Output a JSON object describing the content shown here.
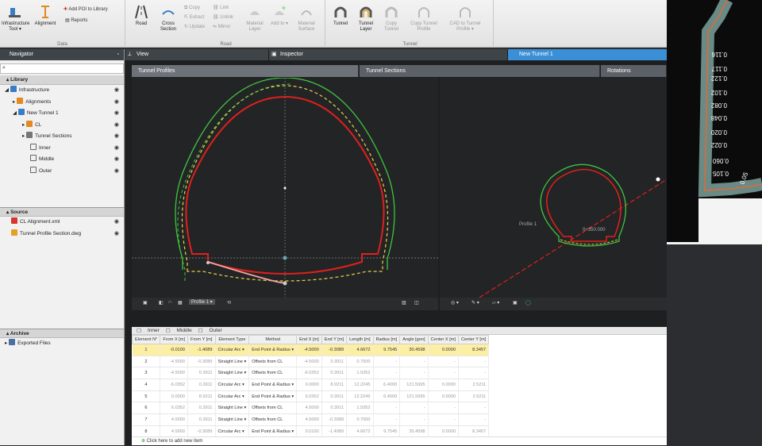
{
  "ribbon": {
    "groups": [
      {
        "label": "Data"
      },
      {
        "label": "Road"
      },
      {
        "label": "Tunnel"
      }
    ],
    "infra_tool": "Infrastructure Tool ▾",
    "alignment": "Alignment",
    "add_poi": "Add POI to Library",
    "reports": "Reports",
    "road": "Road",
    "cross_section": "Cross Section",
    "copy": "Copy",
    "link": "Link",
    "extract": "Extract",
    "unlink": "Unlink",
    "update": "Update",
    "mirror": "Mirror",
    "material_layer": "Material Layer",
    "add_to": "Add to ▾",
    "material_surface": "Material Surface",
    "tunnel": "Tunnel",
    "tunnel_layer": "Tunnel Layer",
    "copy_tunnel": "Copy Tunnel",
    "copy_tunnel_profile": "Copy Tunnel Profile",
    "cad_to_tunnel_profile": "CAD to Tunnel Profile ▾"
  },
  "navigator": {
    "title": "Navigator",
    "library_label": "Library",
    "tree": [
      {
        "label": "Infrastructure",
        "depth": 0
      },
      {
        "label": "Alignments",
        "depth": 1
      },
      {
        "label": "New Tunnel 1",
        "depth": 1
      },
      {
        "label": "CL",
        "depth": 2
      },
      {
        "label": "Tunnel Sections",
        "depth": 2
      },
      {
        "label": "Inner",
        "depth": 2
      },
      {
        "label": "Middle",
        "depth": 2
      },
      {
        "label": "Outer",
        "depth": 2
      }
    ],
    "source_label": "Source",
    "source": [
      {
        "label": "CL Alignment.xml"
      },
      {
        "label": "Tunnel Profile Section.dwg"
      }
    ],
    "archive_label": "Archive",
    "archive": [
      {
        "label": "Exported Files"
      }
    ]
  },
  "tabs": {
    "view": "View",
    "inspector": "Inspector",
    "doc": "New Tunnel 1"
  },
  "subtabs": {
    "profiles": "Tunnel Profiles",
    "sections": "Tunnel Sections",
    "rotations": "Rotations"
  },
  "views": {
    "profile_select": "Profile 1 ▾",
    "section_label": "Profile 1",
    "station": "0+350.000"
  },
  "grid": {
    "tabs": [
      "Inner",
      "Middle",
      "Outer"
    ],
    "columns": [
      "Element N°",
      "From X [m]",
      "From Y [m]",
      "Element Type",
      "Method",
      "End X [m]",
      "End Y [m]",
      "Length [m]",
      "Radius [m]",
      "Angle [gon]",
      "Center X [m]",
      "Center Y [m]"
    ],
    "rows": [
      [
        "1",
        "-0.0100",
        "-1.4089",
        "Circular Arc ▾",
        "End Point & Radius ▾",
        "-4.5000",
        "-0.3089",
        "4.6672",
        "9.7545",
        "30.4598",
        "0.0000",
        "8.3457"
      ],
      [
        "2",
        "-4.5000",
        "-0.3089",
        "Straight Line ▾",
        "Offsets from CL",
        "-4.5000",
        "0.3911",
        "0.7000",
        "-",
        "-",
        "-",
        "-"
      ],
      [
        "3",
        "-4.5000",
        "0.3911",
        "Straight Line ▾",
        "Offsets from CL",
        "-6.0352",
        "0.3911",
        "1.5352",
        "-",
        "-",
        "-",
        "-"
      ],
      [
        "4",
        "-6.0352",
        "0.3911",
        "Circular Arc ▾",
        "End Point & Radius ▾",
        "0.0000",
        "8.9211",
        "12.2245",
        "6.4000",
        "121.5995",
        "0.0000",
        "2.5211"
      ],
      [
        "5",
        "0.0000",
        "8.9211",
        "Circular Arc ▾",
        "End Point & Radius ▾",
        "6.0352",
        "0.3911",
        "12.2245",
        "6.4000",
        "121.5995",
        "0.0000",
        "2.5211"
      ],
      [
        "6",
        "6.0352",
        "0.3911",
        "Straight Line ▾",
        "Offsets from CL",
        "4.5000",
        "0.3911",
        "1.5352",
        "-",
        "-",
        "-",
        "-"
      ],
      [
        "7",
        "4.5000",
        "0.3911",
        "Straight Line ▾",
        "Offsets from CL",
        "4.5000",
        "-0.3089",
        "0.7000",
        "-",
        "-",
        "-",
        "-"
      ],
      [
        "8",
        "4.5000",
        "-0.3089",
        "Circular Arc ▾",
        "End Point & Radius ▾",
        "0.0100",
        "-1.4089",
        "4.6672",
        "9.7545",
        "30.4598",
        "0.0000",
        "8.3457"
      ]
    ],
    "add_label": "Click here to add new item"
  },
  "plan_labels": [
    "0.116",
    "0.117",
    "0.122",
    "0.102",
    "0.082",
    "0.048",
    "0.020",
    "0.022",
    "0.060",
    "0.105",
    "0.05"
  ],
  "colors": {
    "accent": "#3a8fd6",
    "profile_red": "#e0201c",
    "profile_green": "#3ec43e",
    "profile_yellow": "#e8d24a",
    "selected_row": "#fcefa4"
  }
}
